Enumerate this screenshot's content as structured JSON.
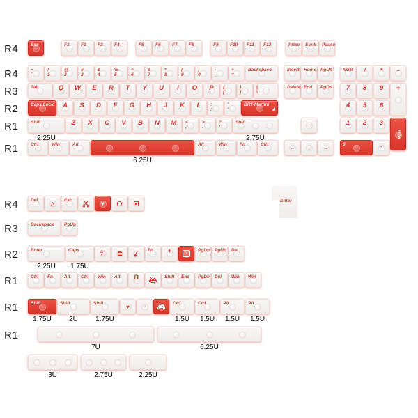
{
  "colors": {
    "legend_red": "#d2382d",
    "key_red": "#e2453a",
    "key_red_border": "#c12d23",
    "key_white": "#f7f5f4",
    "glow_pink": "#ef9b93",
    "row_label_black": "#1f1f1f"
  },
  "icons": {
    "heart-icon": "♥",
    "triangle-icon": "△",
    "circle-icon": "○",
    "arrow-up-icon": "↑",
    "arrow-down-icon": "↓",
    "arrow-left-icon": "←",
    "arrow-right-icon": "→",
    "question-box-icon": "?",
    "gamepad-shapes-icon": "△○\n×□",
    "enter-corner-icon": "◢"
  },
  "sections": [
    {
      "id": "top-section",
      "margin_top": 0,
      "rows": [
        {
          "label": "R4",
          "mb": 14,
          "keys": [
            {
              "t": "Esc",
              "c": "red"
            },
            {
              "g": 1
            },
            {
              "t": "F1"
            },
            {
              "t": "F2"
            },
            {
              "t": "F3"
            },
            {
              "t": "F4"
            },
            {
              "g": 0.45
            },
            {
              "t": "F5"
            },
            {
              "t": "F6"
            },
            {
              "t": "F7"
            },
            {
              "t": "F8"
            },
            {
              "g": 0.45
            },
            {
              "t": "F9"
            },
            {
              "t": "F10"
            },
            {
              "t": "F11"
            },
            {
              "t": "F12"
            },
            {
              "g": 0.5
            },
            {
              "t": "Prtsc"
            },
            {
              "t": "Scrlk"
            },
            {
              "t": "Pause"
            }
          ]
        },
        {
          "label": "R4",
          "mb": 3,
          "keys": [
            {
              "t": "~",
              "s": "`"
            },
            {
              "t": "!",
              "s": "1"
            },
            {
              "t": "@",
              "s": "2"
            },
            {
              "t": "#",
              "s": "3"
            },
            {
              "t": "$",
              "s": "4"
            },
            {
              "t": "%",
              "s": "5"
            },
            {
              "t": "^",
              "s": "6"
            },
            {
              "t": "&",
              "s": "7"
            },
            {
              "t": "*",
              "s": "8"
            },
            {
              "t": "(",
              "s": "9"
            },
            {
              "t": ")",
              "s": "0"
            },
            {
              "t": "-",
              "s": "_"
            },
            {
              "t": "+",
              "s": "="
            },
            {
              "t": "Backspace",
              "w": 2
            },
            {
              "g": 0.33
            },
            {
              "t": "Insert"
            },
            {
              "t": "Home"
            },
            {
              "t": "PgUp"
            },
            {
              "g": 0.33
            },
            {
              "t": "NUM"
            },
            {
              "t": "/"
            },
            {
              "t": "*"
            },
            {
              "t": "-"
            }
          ]
        },
        {
          "label": "R3",
          "mb": 3,
          "keys": [
            {
              "t": "Tab",
              "w": 1.5
            },
            {
              "t": "Q"
            },
            {
              "t": "W"
            },
            {
              "t": "E"
            },
            {
              "t": "R"
            },
            {
              "t": "T"
            },
            {
              "t": "Y"
            },
            {
              "t": "U"
            },
            {
              "t": "I"
            },
            {
              "t": "O"
            },
            {
              "t": "P"
            },
            {
              "t": "{",
              "s": "["
            },
            {
              "t": "}",
              "s": "]"
            },
            {
              "t": "|",
              "s": "\\",
              "w": 1.5
            },
            {
              "g": 0.33
            },
            {
              "t": "Delete"
            },
            {
              "t": "End"
            },
            {
              "t": "PgDn"
            },
            {
              "g": 0.33
            },
            {
              "t": "7"
            },
            {
              "t": "8"
            },
            {
              "t": "9"
            },
            {
              "t": "+",
              "h": 2
            }
          ]
        },
        {
          "label": "R2",
          "mb": 3,
          "keys": [
            {
              "t": "Caps Lock",
              "w": 1.75,
              "c": "red"
            },
            {
              "t": "A"
            },
            {
              "t": "S"
            },
            {
              "t": "D"
            },
            {
              "t": "F"
            },
            {
              "t": "G"
            },
            {
              "t": "H"
            },
            {
              "t": "J"
            },
            {
              "t": "K"
            },
            {
              "t": "L"
            },
            {
              "t": ":",
              "s": ";"
            },
            {
              "t": "\"",
              "s": "'"
            },
            {
              "t": "BRT-Martini",
              "w": 2.25,
              "c": "red",
              "corner": true
            },
            {
              "g": 3.66
            },
            {
              "t": "4"
            },
            {
              "t": "5"
            },
            {
              "t": "6"
            }
          ]
        },
        {
          "label": "R1",
          "mb": 10,
          "keys": [
            {
              "t": "Shift",
              "w": 2.25,
              "lb": "2.25U"
            },
            {
              "t": "Z"
            },
            {
              "t": "X"
            },
            {
              "t": "C"
            },
            {
              "t": "V"
            },
            {
              "t": "B"
            },
            {
              "t": "N"
            },
            {
              "t": "M"
            },
            {
              "t": "<",
              "s": ","
            },
            {
              "t": ">",
              "s": "."
            },
            {
              "t": "?",
              "s": "/"
            },
            {
              "t": "Shift",
              "w": 2.75,
              "lb": "2.75U"
            },
            {
              "g": 1.33
            },
            {
              "icon": "arrow-up-icon"
            },
            {
              "g": 1.33
            },
            {
              "t": "1"
            },
            {
              "t": "2"
            },
            {
              "t": "3"
            },
            {
              "t": "Enter",
              "c": "red",
              "h": 2,
              "vert": true
            }
          ]
        },
        {
          "label": "R1",
          "mb": 0,
          "keys": [
            {
              "t": "Ctrl",
              "w": 1.25
            },
            {
              "t": "Win",
              "w": 1.25
            },
            {
              "t": "Alt",
              "w": 1.25
            },
            {
              "t": "",
              "w": 6.25,
              "c": "red",
              "lb": "6.25U"
            },
            {
              "t": "Alt",
              "w": 1.25
            },
            {
              "t": "Win",
              "w": 1.25
            },
            {
              "t": "Fn",
              "w": 1.25
            },
            {
              "t": "Ctrl",
              "w": 1.25
            },
            {
              "g": 0.33
            },
            {
              "icon": "arrow-left-icon"
            },
            {
              "icon": "arrow-down-icon"
            },
            {
              "icon": "arrow-right-icon"
            },
            {
              "g": 0.33
            },
            {
              "t": "0",
              "w": 2,
              "c": "red"
            },
            {
              "t": "."
            }
          ]
        }
      ]
    },
    {
      "id": "bottom-section",
      "margin_top": 58,
      "iso_enter": {
        "t": "Enter"
      },
      "rows": [
        {
          "label": "R4",
          "mb": 13,
          "keys": [
            {
              "t": "Del"
            },
            {
              "icon": "triangle-icon"
            },
            {
              "t": "Esc"
            },
            {
              "icon": "scissors-icon"
            },
            {
              "icon": "heart-icon",
              "c": "red"
            },
            {
              "icon": "rounded-square-icon"
            },
            {
              "icon": "square-icon"
            }
          ]
        },
        {
          "label": "R3",
          "mb": 15,
          "keys": [
            {
              "t": "Backspace",
              "w": 2
            },
            {
              "t": "PgUp"
            }
          ]
        },
        {
          "label": "R2",
          "mb": 16,
          "keys": [
            {
              "t": "Enter",
              "w": 2.25,
              "lb": "2.25U"
            },
            {
              "t": "Caps",
              "w": 1.75,
              "lb": "1.75U"
            },
            {
              "icon": "gamepad-shapes-icon"
            },
            {
              "icon": "burger-icon"
            },
            {
              "icon": "cherry-icon"
            },
            {
              "t": "Fn"
            },
            {
              "t": "+"
            },
            {
              "icon": "question-box-icon",
              "c": "red"
            },
            {
              "t": "PgDn"
            },
            {
              "t": "PgUp"
            },
            {
              "t": "Del"
            }
          ]
        },
        {
          "label": "R1",
          "mb": 16,
          "keys": [
            {
              "t": "Ctrl"
            },
            {
              "t": "Fn"
            },
            {
              "t": "Alt"
            },
            {
              "t": "Ctrl"
            },
            {
              "t": "Win"
            },
            {
              "t": "Alt"
            },
            {
              "t": "B"
            },
            {
              "icon": "invader-icon"
            },
            {
              "t": "Shift"
            },
            {
              "t": "End"
            },
            {
              "t": "PgDn"
            },
            {
              "t": "Del"
            },
            {
              "t": "Win"
            },
            {
              "t": "Win"
            }
          ]
        },
        {
          "label": "R1",
          "mb": 18,
          "keys": [
            {
              "t": "Shift",
              "w": 1.75,
              "c": "red",
              "lb": "1.75U"
            },
            {
              "t": "Shift",
              "w": 2,
              "lb": "2U"
            },
            {
              "t": "Shift",
              "w": 1.75,
              "lb": "1.75U"
            },
            {
              "icon": "heart-icon"
            },
            {
              "icon": "circle-icon"
            },
            {
              "icon": "invader-icon",
              "c": "red"
            },
            {
              "t": "Ctrl",
              "w": 1.5,
              "lb": "1.5U"
            },
            {
              "t": "Ctrl",
              "w": 1.5,
              "lb": "1.5U"
            },
            {
              "t": "Alt",
              "w": 1.5,
              "lb": "1.5U"
            },
            {
              "t": "Alt",
              "w": 1.5,
              "lb": "1.5U"
            }
          ]
        },
        {
          "label": "R1",
          "mb": 18,
          "keys": [
            {
              "g": 0.6
            },
            {
              "t": "",
              "w": 7,
              "lb": "7U"
            },
            {
              "g": 0.15
            },
            {
              "t": "",
              "w": 6.25,
              "lb": "6.25U"
            }
          ]
        },
        {
          "label": "",
          "mb": 0,
          "keys": [
            {
              "t": "",
              "w": 3,
              "lb": "3U"
            },
            {
              "g": 0.15
            },
            {
              "t": "",
              "w": 2.75,
              "lb": "2.75U"
            },
            {
              "g": 0.15
            },
            {
              "t": "",
              "w": 2.25,
              "lb": "2.25U"
            }
          ]
        }
      ]
    }
  ]
}
